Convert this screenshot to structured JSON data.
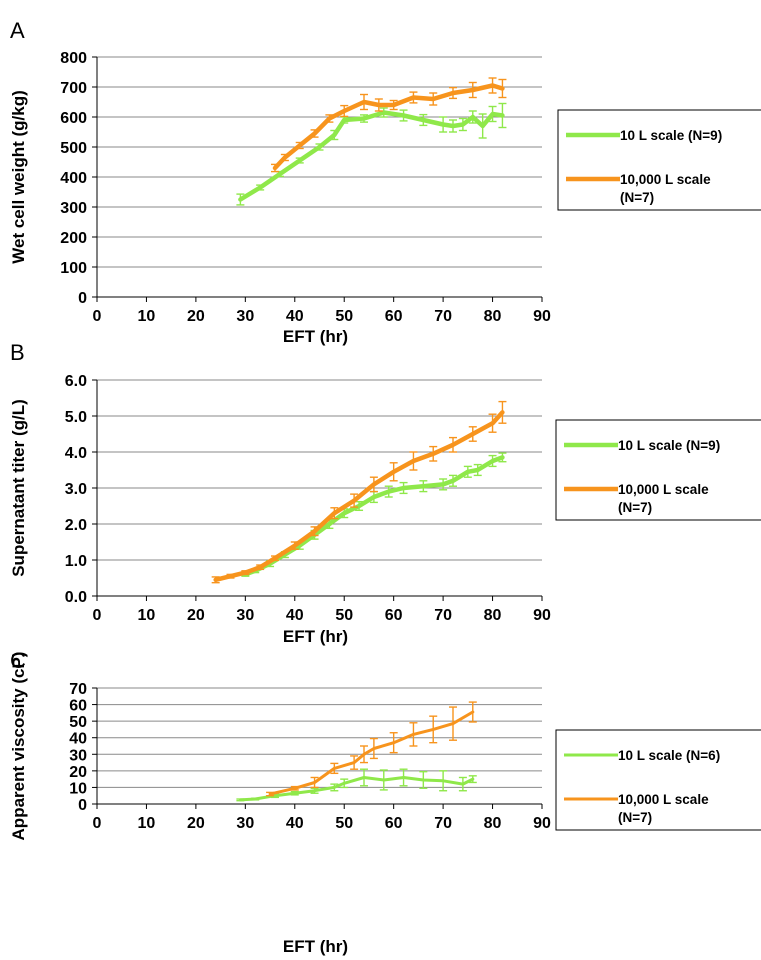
{
  "colors": {
    "series_10L": "#8fe84a",
    "series_10000L": "#f7941d",
    "grid": "#8a8a8a",
    "axis": "#000000"
  },
  "chart_data": [
    {
      "panel_label": "A",
      "type": "line",
      "xlabel": "EFT (hr)",
      "ylabel": "Wet cell weight (g/kg)",
      "xlim": [
        0,
        90
      ],
      "ylim": [
        0,
        800
      ],
      "xticks": [
        "0",
        "10",
        "20",
        "30",
        "40",
        "50",
        "60",
        "70",
        "80",
        "90"
      ],
      "yticks": [
        "0",
        "100",
        "200",
        "300",
        "400",
        "500",
        "600",
        "700",
        "800"
      ],
      "grid": "horizontal",
      "legend": {
        "position": "right",
        "entries": [
          {
            "lines": [
              "10 L scale  (N=9)"
            ]
          },
          {
            "lines": [
              "10,000 L scale",
              "(N=7)"
            ]
          }
        ]
      },
      "series": [
        {
          "name": "10 L scale  (N=9)",
          "x": [
            29,
            33,
            37,
            41,
            45,
            48,
            50,
            54,
            58,
            62,
            66,
            70,
            72,
            74,
            76,
            78,
            80,
            82
          ],
          "y": [
            325,
            365,
            410,
            455,
            500,
            540,
            590,
            595,
            615,
            605,
            590,
            575,
            570,
            575,
            600,
            570,
            610,
            605
          ],
          "err": [
            18,
            8,
            8,
            8,
            10,
            15,
            10,
            12,
            15,
            18,
            18,
            25,
            20,
            20,
            20,
            40,
            25,
            40
          ]
        },
        {
          "name": "10,000 L scale (N=7)",
          "x": [
            36,
            38,
            41,
            44,
            47,
            50,
            54,
            57,
            60,
            64,
            68,
            72,
            76,
            80,
            82
          ],
          "y": [
            430,
            465,
            505,
            545,
            595,
            620,
            650,
            640,
            640,
            665,
            660,
            680,
            690,
            705,
            695
          ],
          "err": [
            12,
            10,
            10,
            12,
            12,
            18,
            25,
            20,
            15,
            18,
            20,
            18,
            25,
            25,
            30
          ]
        }
      ]
    },
    {
      "panel_label": "B",
      "type": "line",
      "xlabel": "EFT (hr)",
      "ylabel": "Supernatant titer (g/L)",
      "xlim": [
        0,
        90
      ],
      "ylim": [
        0,
        6
      ],
      "xticks": [
        "0",
        "10",
        "20",
        "30",
        "40",
        "50",
        "60",
        "70",
        "80",
        "90"
      ],
      "yticks": [
        "0.0",
        "1.0",
        "2.0",
        "3.0",
        "4.0",
        "5.0",
        "6.0"
      ],
      "grid": "horizontal",
      "legend": {
        "position": "right",
        "entries": [
          {
            "lines": [
              "10 L scale  (N=9)"
            ]
          },
          {
            "lines": [
              "10,000 L scale",
              "(N=7)"
            ]
          }
        ]
      },
      "series": [
        {
          "name": "10 L scale  (N=9)",
          "x": [
            30,
            32,
            35,
            38,
            41,
            44,
            47,
            50,
            53,
            56,
            59,
            62,
            66,
            70,
            72,
            75,
            77,
            80,
            82
          ],
          "y": [
            0.6,
            0.7,
            0.9,
            1.15,
            1.4,
            1.7,
            2.0,
            2.3,
            2.5,
            2.75,
            2.9,
            3.0,
            3.05,
            3.1,
            3.2,
            3.45,
            3.5,
            3.75,
            3.85
          ],
          "err": [
            0.05,
            0.05,
            0.08,
            0.08,
            0.1,
            0.12,
            0.12,
            0.12,
            0.12,
            0.15,
            0.15,
            0.15,
            0.15,
            0.15,
            0.15,
            0.15,
            0.15,
            0.15,
            0.12
          ]
        },
        {
          "name": "10,000 L scale (N=7)",
          "x": [
            24,
            27,
            30,
            33,
            36,
            40,
            44,
            48,
            52,
            56,
            60,
            64,
            68,
            72,
            76,
            80,
            82
          ],
          "y": [
            0.45,
            0.55,
            0.65,
            0.8,
            1.05,
            1.4,
            1.8,
            2.3,
            2.65,
            3.1,
            3.45,
            3.75,
            3.95,
            4.2,
            4.5,
            4.8,
            5.1
          ],
          "err": [
            0.08,
            0.05,
            0.05,
            0.06,
            0.06,
            0.1,
            0.12,
            0.15,
            0.18,
            0.2,
            0.25,
            0.25,
            0.2,
            0.2,
            0.2,
            0.25,
            0.3
          ]
        }
      ]
    },
    {
      "panel_label": "C",
      "type": "line",
      "xlabel": "EFT (hr)",
      "ylabel": "Apparent  viscosity (cP)",
      "xlim": [
        0,
        90
      ],
      "ylim": [
        0,
        70
      ],
      "xticks": [
        "0",
        "10",
        "20",
        "30",
        "40",
        "50",
        "60",
        "70",
        "80",
        "90"
      ],
      "yticks": [
        "0",
        "10",
        "20",
        "30",
        "40",
        "50",
        "60",
        "70"
      ],
      "grid": "horizontal",
      "legend": {
        "position": "right",
        "entries": [
          {
            "lines": [
              "10 L scale  (N=6)"
            ]
          },
          {
            "lines": [
              "10,000 L scale",
              "(N=7)"
            ]
          }
        ]
      },
      "series": [
        {
          "name": "10 L scale  (N=6)",
          "x": [
            29,
            32,
            36,
            40,
            44,
            48,
            50,
            54,
            58,
            62,
            66,
            70,
            74,
            76
          ],
          "y": [
            2.5,
            3,
            5,
            6.5,
            8,
            10,
            12.5,
            16,
            14.5,
            16,
            14.5,
            14,
            12,
            15
          ],
          "err": [
            0.5,
            0.5,
            1,
            1,
            1.5,
            2,
            2.5,
            5,
            6,
            5,
            5,
            6,
            4,
            2
          ]
        },
        {
          "name": "10,000 L scale (N=7)",
          "x": [
            35,
            40,
            44,
            48,
            52,
            54,
            56,
            60,
            64,
            68,
            72,
            76
          ],
          "y": [
            6,
            9.5,
            13,
            21.5,
            25,
            30,
            33.5,
            37,
            42,
            45,
            48.5,
            55.5
          ],
          "err": [
            1,
            1,
            3,
            3,
            4,
            5,
            6,
            6,
            7,
            8,
            10,
            6
          ]
        }
      ]
    }
  ]
}
